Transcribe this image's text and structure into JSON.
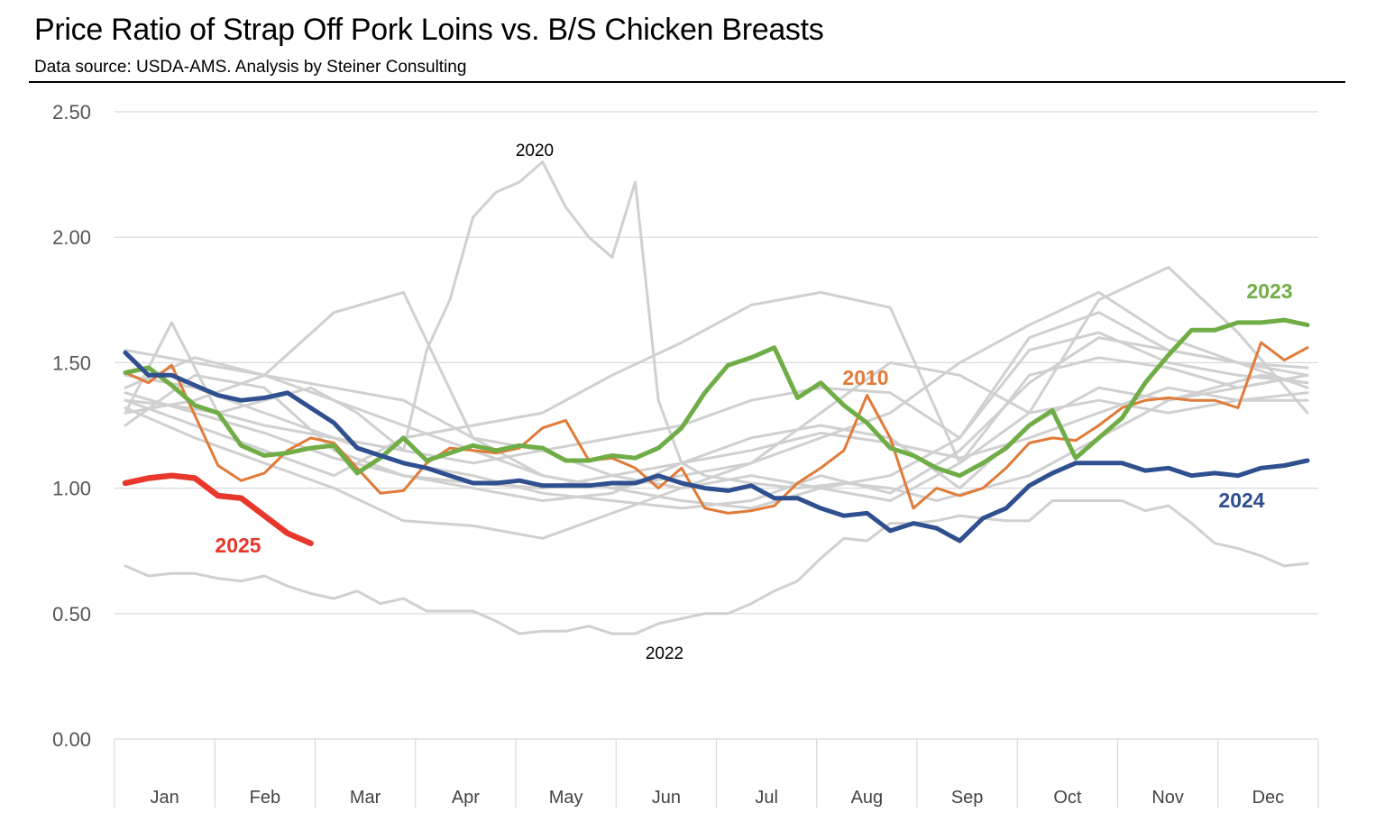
{
  "title": "Price Ratio of Strap Off Pork Loins vs. B/S Chicken Breasts",
  "subtitle": "Data source: USDA-AMS.   Analysis by Steiner Consulting",
  "chart_data": {
    "type": "line",
    "ylim": [
      0,
      2.5
    ],
    "yticks": [
      "0.00",
      "0.50",
      "1.00",
      "1.50",
      "2.00",
      "2.50"
    ],
    "categories": [
      "Jan",
      "Feb",
      "Mar",
      "Apr",
      "May",
      "Jun",
      "Jul",
      "Aug",
      "Sep",
      "Oct",
      "Nov",
      "Dec"
    ],
    "points_per_year": 52,
    "grid": true,
    "legend": "none",
    "colors": {
      "other_years": "#d0d0d0",
      "2010": "#e07b39",
      "2023": "#70ad47",
      "2024": "#2f4f8f",
      "2025": "#e8372c"
    },
    "annotations": [
      {
        "text": "2020",
        "series": "2020"
      },
      {
        "text": "2022",
        "series": "2022"
      }
    ],
    "series": [
      {
        "name": "2020",
        "labeled": true,
        "highlight": false,
        "x": [
          1,
          3,
          5,
          7,
          9,
          11,
          13,
          14,
          15,
          16,
          17,
          18,
          19,
          20,
          21,
          22,
          23,
          24,
          25,
          26,
          28,
          30,
          32,
          34,
          36,
          38,
          40,
          42,
          44,
          46,
          48,
          50,
          52
        ],
        "y": [
          1.35,
          1.33,
          1.3,
          1.35,
          1.4,
          1.3,
          1.15,
          1.55,
          1.75,
          2.08,
          2.18,
          2.22,
          2.3,
          2.12,
          2.0,
          1.92,
          2.22,
          1.35,
          1.1,
          1.05,
          1.02,
          1.0,
          1.02,
          1.0,
          0.95,
          1.0,
          1.05,
          1.15,
          1.25,
          1.35,
          1.4,
          1.45,
          1.42
        ]
      },
      {
        "name": "2022",
        "labeled": true,
        "highlight": false,
        "x": [
          1,
          2,
          3,
          4,
          5,
          6,
          7,
          8,
          9,
          10,
          11,
          12,
          13,
          14,
          15,
          16,
          17,
          18,
          19,
          20,
          21,
          22,
          23,
          24,
          25,
          26,
          27,
          28,
          29,
          30,
          31,
          32,
          33,
          34,
          35,
          36,
          37,
          38,
          39,
          40,
          41,
          42,
          43,
          44,
          45,
          46,
          47,
          48,
          49,
          50,
          51,
          52
        ],
        "y": [
          0.69,
          0.65,
          0.66,
          0.66,
          0.64,
          0.63,
          0.65,
          0.61,
          0.58,
          0.56,
          0.59,
          0.54,
          0.56,
          0.51,
          0.51,
          0.51,
          0.47,
          0.42,
          0.43,
          0.43,
          0.45,
          0.42,
          0.42,
          0.46,
          0.48,
          0.5,
          0.5,
          0.54,
          0.59,
          0.63,
          0.72,
          0.8,
          0.79,
          0.86,
          0.86,
          0.87,
          0.89,
          0.88,
          0.87,
          0.87,
          0.95,
          0.95,
          0.95,
          0.95,
          0.91,
          0.93,
          0.86,
          0.78,
          0.76,
          0.73,
          0.69,
          0.7
        ]
      },
      {
        "name": "",
        "highlight": false,
        "x": [
          1,
          4,
          7,
          10,
          13,
          16,
          19,
          22,
          25,
          28,
          31,
          34,
          37,
          40,
          43,
          46,
          49,
          52
        ],
        "y": [
          1.55,
          1.5,
          1.45,
          1.7,
          1.78,
          1.2,
          1.05,
          1.0,
          1.05,
          1.1,
          1.3,
          1.5,
          1.45,
          1.3,
          1.75,
          1.88,
          1.62,
          1.3
        ]
      },
      {
        "name": "",
        "highlight": false,
        "x": [
          1,
          3,
          5,
          7,
          10,
          13,
          16,
          19,
          22,
          25,
          28,
          31,
          34,
          37,
          40,
          43,
          46,
          49,
          52
        ],
        "y": [
          1.3,
          1.66,
          1.3,
          1.25,
          1.2,
          1.15,
          1.1,
          1.15,
          1.05,
          1.0,
          1.1,
          1.2,
          1.3,
          1.5,
          1.65,
          1.78,
          1.6,
          1.5,
          1.45
        ]
      },
      {
        "name": "",
        "highlight": false,
        "x": [
          1,
          4,
          7,
          10,
          13,
          16,
          19,
          22,
          25,
          28,
          31,
          34,
          37,
          40,
          43,
          46,
          49,
          52
        ],
        "y": [
          1.4,
          1.52,
          1.45,
          1.4,
          1.35,
          1.2,
          1.15,
          1.2,
          1.25,
          1.35,
          1.4,
          1.38,
          1.2,
          1.55,
          1.62,
          1.5,
          1.45,
          1.42
        ]
      },
      {
        "name": "",
        "highlight": false,
        "x": [
          1,
          4,
          7,
          10,
          13,
          16,
          19,
          22,
          25,
          28,
          31,
          34,
          37,
          40,
          43,
          46,
          49,
          52
        ],
        "y": [
          1.25,
          1.45,
          1.4,
          1.15,
          1.05,
          1.0,
          0.95,
          0.98,
          1.1,
          1.2,
          1.25,
          1.2,
          1.0,
          1.25,
          1.4,
          1.35,
          1.4,
          1.45
        ]
      },
      {
        "name": "",
        "highlight": false,
        "x": [
          1,
          4,
          7,
          10,
          13,
          16,
          19,
          22,
          25,
          28,
          31,
          34,
          37,
          40,
          43,
          46,
          49,
          52
        ],
        "y": [
          1.32,
          1.2,
          1.1,
          1.0,
          0.87,
          0.85,
          0.8,
          0.9,
          1.0,
          1.05,
          1.0,
          0.95,
          1.1,
          1.3,
          1.35,
          1.3,
          1.35,
          1.38
        ]
      },
      {
        "name": "",
        "highlight": false,
        "x": [
          1,
          4,
          7,
          10,
          13,
          16,
          19,
          22,
          25,
          28,
          31,
          34,
          37,
          40,
          43,
          46,
          49,
          52
        ],
        "y": [
          1.35,
          1.25,
          1.15,
          1.05,
          1.2,
          1.25,
          1.3,
          1.45,
          1.58,
          1.73,
          1.78,
          1.72,
          1.1,
          1.45,
          1.52,
          1.48,
          1.4,
          1.45
        ]
      },
      {
        "name": "",
        "highlight": false,
        "x": [
          1,
          4,
          7,
          10,
          13,
          16,
          19,
          22,
          25,
          28,
          31,
          34,
          37,
          40,
          43,
          46,
          49,
          52
        ],
        "y": [
          1.3,
          1.35,
          1.45,
          1.35,
          1.25,
          1.15,
          1.05,
          1.0,
          0.95,
          0.92,
          1.0,
          1.05,
          1.2,
          1.6,
          1.7,
          1.55,
          1.5,
          1.4
        ]
      },
      {
        "name": "",
        "highlight": false,
        "x": [
          1,
          4,
          7,
          10,
          13,
          16,
          19,
          22,
          25,
          28,
          31,
          34,
          37,
          40,
          43,
          46,
          49,
          52
        ],
        "y": [
          1.38,
          1.3,
          1.22,
          1.12,
          1.05,
          1.02,
          1.0,
          1.05,
          1.1,
          1.15,
          1.22,
          1.18,
          1.12,
          1.2,
          1.3,
          1.4,
          1.35,
          1.35
        ]
      },
      {
        "name": "",
        "highlight": false,
        "x": [
          1,
          4,
          7,
          10,
          13,
          16,
          19,
          22,
          25,
          28,
          31,
          34,
          37,
          40,
          43,
          46,
          49,
          52
        ],
        "y": [
          1.45,
          1.4,
          1.3,
          1.2,
          1.1,
          1.05,
          0.98,
          0.95,
          0.92,
          0.95,
          1.05,
          0.98,
          1.15,
          1.42,
          1.6,
          1.55,
          1.5,
          1.48
        ]
      },
      {
        "name": "2010",
        "highlight": true,
        "x": [
          1,
          2,
          3,
          4,
          5,
          6,
          7,
          8,
          9,
          10,
          11,
          12,
          13,
          14,
          15,
          16,
          17,
          18,
          19,
          20,
          21,
          22,
          23,
          24,
          25,
          26,
          27,
          28,
          29,
          30,
          31,
          32,
          33,
          34,
          35,
          36,
          37,
          38,
          39,
          40,
          41,
          42,
          43,
          44,
          45,
          46,
          47,
          48,
          49,
          50,
          51,
          52
        ],
        "y": [
          1.46,
          1.42,
          1.49,
          1.29,
          1.09,
          1.03,
          1.06,
          1.15,
          1.2,
          1.18,
          1.08,
          0.98,
          0.99,
          1.1,
          1.16,
          1.15,
          1.14,
          1.16,
          1.24,
          1.27,
          1.11,
          1.12,
          1.08,
          1.0,
          1.08,
          0.92,
          0.9,
          0.91,
          0.93,
          1.02,
          1.08,
          1.15,
          1.37,
          1.2,
          0.92,
          1.0,
          0.97,
          1.0,
          1.08,
          1.18,
          1.2,
          1.19,
          1.25,
          1.32,
          1.35,
          1.36,
          1.35,
          1.35,
          1.32,
          1.58,
          1.51,
          1.56
        ]
      },
      {
        "name": "2023",
        "highlight": true,
        "x": [
          1,
          2,
          3,
          4,
          5,
          6,
          7,
          8,
          9,
          10,
          11,
          12,
          13,
          14,
          15,
          16,
          17,
          18,
          19,
          20,
          21,
          22,
          23,
          24,
          25,
          26,
          27,
          28,
          29,
          30,
          31,
          32,
          33,
          34,
          35,
          36,
          37,
          38,
          39,
          40,
          41,
          42,
          43,
          44,
          45,
          46,
          47,
          48,
          49,
          50,
          51,
          52
        ],
        "y": [
          1.46,
          1.48,
          1.41,
          1.33,
          1.3,
          1.17,
          1.13,
          1.14,
          1.16,
          1.17,
          1.06,
          1.12,
          1.2,
          1.11,
          1.14,
          1.17,
          1.15,
          1.17,
          1.16,
          1.11,
          1.11,
          1.13,
          1.12,
          1.16,
          1.24,
          1.38,
          1.49,
          1.52,
          1.56,
          1.36,
          1.42,
          1.33,
          1.26,
          1.16,
          1.13,
          1.08,
          1.05,
          1.1,
          1.16,
          1.25,
          1.31,
          1.12,
          1.2,
          1.28,
          1.42,
          1.53,
          1.63,
          1.63,
          1.66,
          1.66,
          1.67,
          1.65
        ]
      },
      {
        "name": "2024",
        "highlight": true,
        "x": [
          1,
          2,
          3,
          4,
          5,
          6,
          7,
          8,
          9,
          10,
          11,
          12,
          13,
          14,
          15,
          16,
          17,
          18,
          19,
          20,
          21,
          22,
          23,
          24,
          25,
          26,
          27,
          28,
          29,
          30,
          31,
          32,
          33,
          34,
          35,
          36,
          37,
          38,
          39,
          40,
          41,
          42,
          43,
          44,
          45,
          46,
          47,
          48,
          49,
          50,
          51,
          52
        ],
        "y": [
          1.54,
          1.45,
          1.45,
          1.41,
          1.37,
          1.35,
          1.36,
          1.38,
          1.32,
          1.26,
          1.16,
          1.13,
          1.1,
          1.08,
          1.05,
          1.02,
          1.02,
          1.03,
          1.01,
          1.01,
          1.01,
          1.02,
          1.02,
          1.05,
          1.02,
          1.0,
          0.99,
          1.01,
          0.96,
          0.96,
          0.92,
          0.89,
          0.9,
          0.83,
          0.86,
          0.84,
          0.79,
          0.88,
          0.92,
          1.01,
          1.06,
          1.1,
          1.1,
          1.1,
          1.07,
          1.08,
          1.05,
          1.06,
          1.05,
          1.08,
          1.09,
          1.11
        ]
      },
      {
        "name": "2025",
        "highlight": true,
        "x": [
          1,
          2,
          3,
          4,
          5,
          6,
          7,
          8,
          9
        ],
        "y": [
          1.02,
          1.04,
          1.05,
          1.04,
          0.97,
          0.96,
          0.89,
          0.82,
          0.78
        ]
      }
    ]
  }
}
